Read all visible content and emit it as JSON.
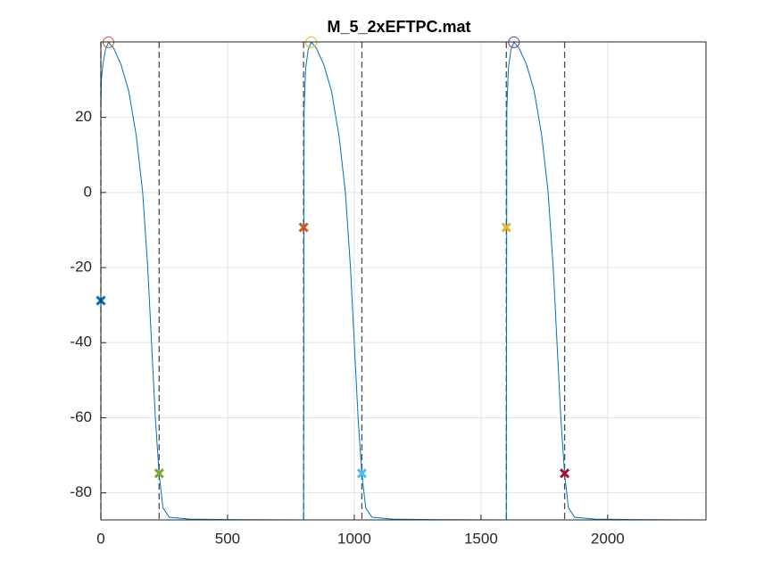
{
  "chart_data": {
    "type": "line",
    "title": "M_5_2xEFTPC.mat",
    "xlim": [
      0,
      2388
    ],
    "ylim": [
      -87.2,
      40.1
    ],
    "xticks": [
      0,
      500,
      1000,
      1500,
      2000
    ],
    "yticks": [
      -80,
      -60,
      -40,
      -20,
      0,
      20
    ],
    "grid": true,
    "vlines": [
      0,
      230,
      800,
      1030,
      1600,
      1830
    ],
    "vline_color": "#4d4d4d",
    "series": [
      {
        "color": "#0072bd",
        "marker": "line",
        "x": [
          0,
          2,
          8,
          18,
          30,
          50,
          80,
          110,
          140,
          165,
          185,
          200,
          215,
          230,
          245,
          270,
          350,
          500,
          799,
          800,
          802,
          808,
          818,
          830,
          850,
          880,
          910,
          940,
          965,
          985,
          1000,
          1015,
          1030,
          1045,
          1070,
          1150,
          1300,
          1599,
          1600,
          1602,
          1608,
          1618,
          1630,
          1650,
          1680,
          1710,
          1740,
          1765,
          1785,
          1800,
          1815,
          1830,
          1845,
          1870,
          1950,
          2100,
          2388
        ],
        "values": [
          22,
          30,
          34,
          38,
          40,
          38.5,
          34,
          27,
          15,
          0,
          -20,
          -40,
          -60,
          -75,
          -84,
          -86.5,
          -87,
          -87.1,
          -87.2,
          -87.2,
          22,
          33,
          38,
          40,
          38.5,
          34,
          27,
          15,
          0,
          -20,
          -40,
          -60,
          -75,
          -84,
          -86.5,
          -87,
          -87.1,
          -87.2,
          -87.2,
          22,
          33,
          38,
          40,
          38.5,
          34,
          27,
          15,
          0,
          -20,
          -40,
          -60,
          -75,
          -84,
          -86.5,
          -87,
          -87.1,
          -87.2
        ]
      },
      {
        "color": "#d95319",
        "marker": "o",
        "x": [
          30
        ],
        "values": [
          40
        ]
      },
      {
        "color": "#edb120",
        "marker": "o",
        "x": [
          830
        ],
        "values": [
          40
        ]
      },
      {
        "color": "#7e2f8e",
        "marker": "o",
        "x": [
          1630
        ],
        "values": [
          40
        ]
      },
      {
        "color": "#0072bd",
        "marker": "x",
        "x": [
          0
        ],
        "values": [
          -28.8
        ]
      },
      {
        "color": "#77ac30",
        "marker": "x",
        "x": [
          230
        ],
        "values": [
          -74.8
        ]
      },
      {
        "color": "#d95319",
        "marker": "x",
        "x": [
          800
        ],
        "values": [
          -9.3
        ]
      },
      {
        "color": "#4dbeee",
        "marker": "x",
        "x": [
          1030
        ],
        "values": [
          -74.8
        ]
      },
      {
        "color": "#edb120",
        "marker": "x",
        "x": [
          1600
        ],
        "values": [
          -9.3
        ]
      },
      {
        "color": "#a2142f",
        "marker": "x",
        "x": [
          1830
        ],
        "values": [
          -74.8
        ]
      }
    ]
  }
}
